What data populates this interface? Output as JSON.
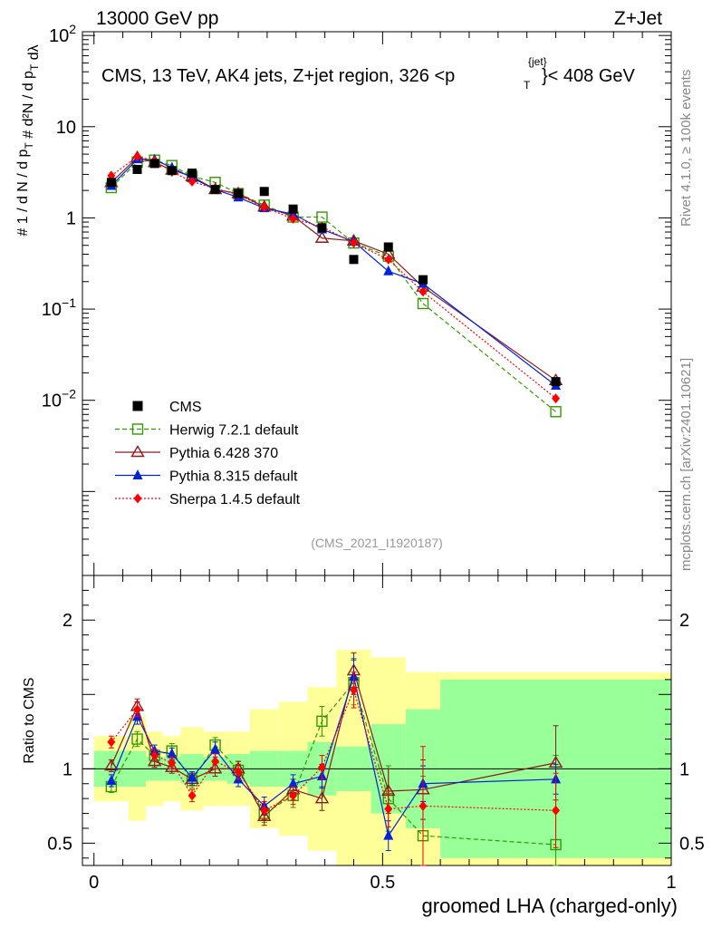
{
  "header": {
    "left": "13000 GeV pp",
    "right": "Z+Jet"
  },
  "side": {
    "rivet": "Rivet 4.1.0, ≥ 100k events",
    "mcplots": "mcplots.cern.ch [arXiv:2401.10621]"
  },
  "main": {
    "title_text": "CMS, 13 TeV, AK4 jets, Z+jet region, 326 <p",
    "title_sup": "{jet}",
    "title_sub": "T",
    "title_tail": "}< 408 GeV",
    "ylabel": "# 1/(dN/dpT #) d²N/(dpT dλ)",
    "watermark": "(CMS_2021_I1920187)"
  },
  "ratio": {
    "ylabel": "Ratio to CMS"
  },
  "xlabel": "groomed LHA (charged-only)",
  "legend": [
    {
      "label": "CMS",
      "color": "#000000",
      "marker": "square-filled",
      "line": "none"
    },
    {
      "label": "Herwig 7.2.1 default",
      "color": "#339900",
      "marker": "square-open",
      "line": "dashed"
    },
    {
      "label": "Pythia 6.428 370",
      "color": "#8b1a1a",
      "marker": "triangle-open",
      "line": "solid"
    },
    {
      "label": "Pythia 8.315 default",
      "color": "#0022dd",
      "marker": "triangle-filled",
      "line": "solid"
    },
    {
      "label": "Sherpa 1.4.5 default",
      "color": "#ff0000",
      "marker": "diamond-filled",
      "line": "dotted"
    }
  ],
  "chart_data": {
    "type": "line",
    "title": "CMS, 13 TeV, AK4 jets, Z+jet region, 326 < pT jet < 408 GeV",
    "xlabel": "groomed LHA (charged-only)",
    "ylabel": "1/(dN/dpT) d2N/(dpT dlambda)",
    "xlim": [
      -0.02,
      1.0
    ],
    "ylim": [
      0.00012,
      110
    ],
    "yscale": "log",
    "xticks": [
      0,
      0.5,
      1
    ],
    "yticks": [
      {
        "v": 0.01,
        "m": "10",
        "e": "−2"
      },
      {
        "v": 0.1,
        "m": "10",
        "e": "−1"
      },
      {
        "v": 1,
        "m": "1",
        "e": ""
      },
      {
        "v": 10,
        "m": "10",
        "e": ""
      },
      {
        "v": 100,
        "m": "10",
        "e": "2"
      }
    ],
    "ratio_ylim": [
      0.35,
      2.3
    ],
    "ratio_yticks": [
      0.5,
      1,
      2
    ],
    "x": [
      0.03,
      0.075,
      0.105,
      0.135,
      0.17,
      0.21,
      0.25,
      0.295,
      0.345,
      0.395,
      0.45,
      0.51,
      0.57,
      0.8
    ],
    "x_edges": [
      0,
      0.06,
      0.09,
      0.12,
      0.15,
      0.19,
      0.23,
      0.27,
      0.32,
      0.37,
      0.42,
      0.48,
      0.54,
      0.6,
      1.0
    ],
    "cms_values": [
      2.45,
      3.4,
      3.95,
      3.3,
      3.1,
      2.05,
      1.85,
      1.95,
      1.25,
      0.78,
      0.35,
      0.48,
      0.21,
      0.016
    ],
    "cms_band_stat": [
      0.12,
      0.12,
      0.08,
      0.08,
      0.1,
      0.08,
      0.1,
      0.12,
      0.12,
      0.18,
      0.15,
      0.3,
      0.4,
      0.6
    ],
    "cms_band_total": [
      0.22,
      0.35,
      0.25,
      0.22,
      0.28,
      0.25,
      0.25,
      0.4,
      0.45,
      0.55,
      0.8,
      0.75,
      0.65,
      0.65
    ],
    "series": [
      {
        "name": "Herwig 7.2.1 default",
        "values": [
          2.15,
          4.1,
          4.3,
          3.75,
          2.85,
          2.45,
          1.85,
          1.38,
          1.02,
          1.02,
          0.53,
          0.38,
          0.115,
          0.0075
        ],
        "ratio": [
          0.88,
          1.2,
          1.09,
          1.12,
          0.92,
          1.16,
          0.99,
          0.7,
          0.82,
          1.32,
          1.58,
          0.8,
          0.55,
          0.49
        ],
        "ratio_err": [
          0.04,
          0.05,
          0.04,
          0.05,
          0.05,
          0.05,
          0.06,
          0.06,
          0.08,
          0.1,
          0.15,
          0.22,
          0.4,
          0.6
        ]
      },
      {
        "name": "Pythia 6.428 370",
        "values": [
          2.45,
          4.6,
          4.05,
          3.35,
          2.85,
          2.05,
          1.85,
          1.32,
          1.05,
          0.6,
          0.56,
          0.4,
          0.175,
          0.0165
        ],
        "ratio": [
          1.02,
          1.42,
          1.05,
          1.01,
          0.93,
          1.0,
          1.0,
          0.68,
          0.86,
          0.8,
          1.66,
          0.85,
          0.86,
          1.04
        ],
        "ratio_err": [
          0.04,
          0.05,
          0.04,
          0.04,
          0.04,
          0.05,
          0.05,
          0.06,
          0.07,
          0.08,
          0.12,
          0.15,
          0.2,
          0.25
        ]
      },
      {
        "name": "Pythia 8.315 default",
        "values": [
          2.25,
          4.4,
          4.35,
          3.55,
          2.75,
          2.05,
          1.68,
          1.28,
          1.1,
          0.75,
          0.55,
          0.26,
          0.19,
          0.0145
        ],
        "ratio": [
          0.92,
          1.35,
          1.12,
          1.1,
          0.94,
          1.13,
          0.93,
          0.75,
          0.9,
          0.95,
          1.62,
          0.55,
          0.9,
          0.93
        ],
        "ratio_err": [
          0.04,
          0.05,
          0.04,
          0.04,
          0.04,
          0.05,
          0.05,
          0.06,
          0.06,
          0.08,
          0.12,
          0.1,
          0.12,
          0.1
        ]
      },
      {
        "name": "Sherpa 1.4.5 default",
        "values": [
          2.9,
          4.7,
          4.25,
          3.2,
          2.5,
          2.1,
          1.8,
          1.3,
          0.98,
          0.8,
          0.53,
          0.35,
          0.155,
          0.0105
        ],
        "ratio": [
          1.18,
          1.4,
          1.09,
          1.04,
          0.82,
          1.05,
          0.98,
          0.72,
          0.82,
          1.01,
          1.53,
          0.73,
          0.75,
          0.72
        ],
        "ratio_err": [
          0.04,
          0.05,
          0.04,
          0.04,
          0.04,
          0.05,
          0.05,
          0.06,
          0.06,
          0.08,
          0.12,
          0.12,
          0.4,
          0.25
        ]
      }
    ]
  }
}
